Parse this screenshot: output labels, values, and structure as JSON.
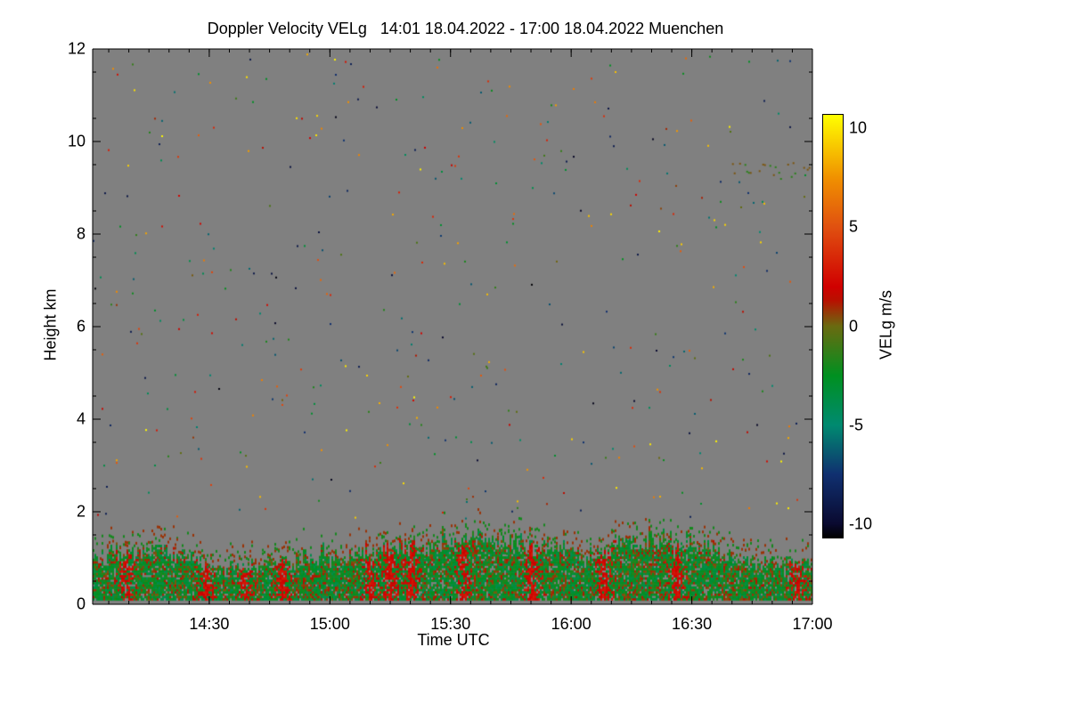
{
  "chart_data": {
    "type": "heatmap",
    "title": "Doppler Velocity VELg   14:01 18.04.2022 - 17:00 18.04.2022 Muenchen",
    "xlabel": "Time UTC",
    "ylabel": "Height km",
    "x_range": [
      "14:01",
      "17:00"
    ],
    "x_ticks": [
      "14:30",
      "15:00",
      "15:30",
      "16:00",
      "16:30",
      "17:00"
    ],
    "y_range": [
      0,
      12
    ],
    "y_ticks": [
      0,
      2,
      4,
      6,
      8,
      10,
      12
    ],
    "background_color": "#808080",
    "colorbar": {
      "label": "VELg m/s",
      "range": [
        -10.7,
        10.7
      ],
      "ticks": [
        10,
        5,
        0,
        -5,
        -10
      ],
      "colors": [
        "#000000",
        "#0a0a30",
        "#103070",
        "#008a70",
        "#009020",
        "#6a6a10",
        "#b81000",
        "#d00000",
        "#e05010",
        "#f09000",
        "#ffff00"
      ]
    },
    "features": {
      "boundary_layer_top_km": [
        0.8,
        1.6
      ],
      "positive_velocity_bursts_utc": [
        "14:09",
        "14:29",
        "14:39",
        "14:48",
        "15:10",
        "15:15",
        "15:20",
        "15:33",
        "15:50",
        "16:08",
        "16:26",
        "16:56"
      ],
      "elevated_layer": {
        "time": [
          "16:40",
          "17:00"
        ],
        "height_km": [
          9.2,
          9.6
        ]
      }
    }
  }
}
